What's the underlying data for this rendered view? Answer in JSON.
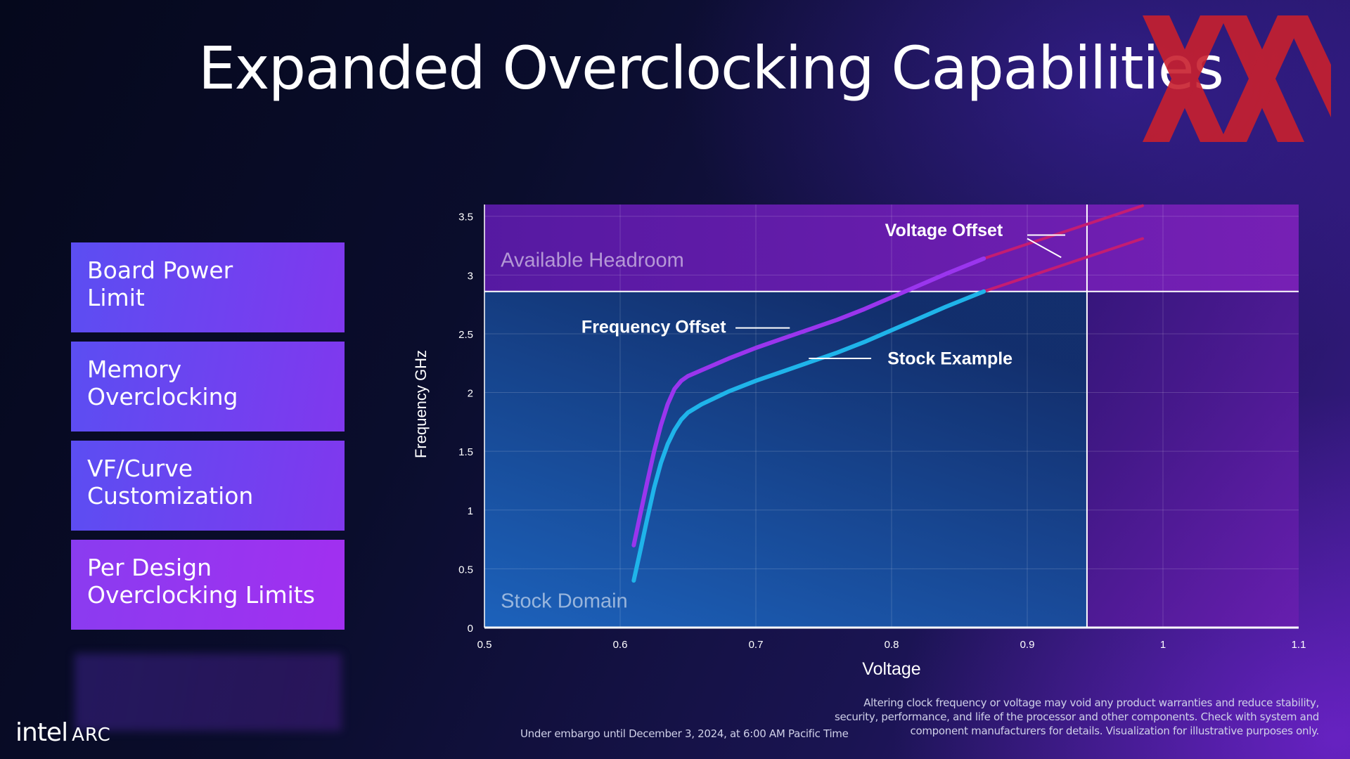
{
  "slide": {
    "title": "Expanded Overclocking Capabilities",
    "features": [
      [
        "Board Power",
        "Limit"
      ],
      [
        "Memory",
        "Overclocking"
      ],
      [
        "VF/Curve",
        "Customization"
      ],
      [
        "Per Design",
        "Overclocking Limits"
      ]
    ],
    "brand": {
      "intel": "intel",
      "arc": "ARC"
    },
    "embargo": "Under embargo until December 3, 2024, at 6:00 AM Pacific Time",
    "disclaimer": "Altering clock frequency or voltage may void any product warranties and reduce stability, security, performance, and life of the processor and other components.  Check with system and component manufacturers for details. Visualization for illustrative purposes only.",
    "colors": {
      "feature_card_start": "#5b4ef2",
      "feature_card_end": "#a22ff0",
      "logo_red": "#c8202e"
    }
  },
  "chart_data": {
    "type": "line",
    "title": "",
    "xlabel": "Voltage",
    "ylabel": "Frequency GHz",
    "xlim": [
      0.5,
      1.1
    ],
    "ylim": [
      0,
      3.6
    ],
    "xticks": [
      0.5,
      0.6,
      0.7,
      0.8,
      0.9,
      1,
      1.1
    ],
    "xtick_labels": [
      "0.5",
      "0.6",
      "0.7",
      "0.8",
      "0.9",
      "1",
      "1.1"
    ],
    "yticks": [
      0,
      0.5,
      1,
      1.5,
      2,
      2.5,
      3,
      3.5
    ],
    "ytick_labels": [
      "0",
      "0.5",
      "1",
      "1.5",
      "2",
      "2.5",
      "3",
      "3.5"
    ],
    "grid": true,
    "regions": [
      {
        "label": "Stock Domain",
        "x_range": [
          0.5,
          0.944
        ],
        "y_range": [
          0,
          2.86
        ],
        "color": "#1b5fb5"
      },
      {
        "label": "Available Headroom",
        "x_range": [
          0.5,
          1.1
        ],
        "y_range": [
          2.86,
          3.6
        ],
        "color": "#6a1fb4"
      }
    ],
    "limits": {
      "voltage": 0.944,
      "frequency": 2.86
    },
    "series": [
      {
        "name": "Stock Example",
        "color": "#1fb4ea",
        "x": [
          0.61,
          0.615,
          0.62,
          0.625,
          0.63,
          0.635,
          0.64,
          0.645,
          0.65,
          0.66,
          0.68,
          0.7,
          0.72,
          0.74,
          0.76,
          0.78,
          0.8,
          0.82,
          0.84,
          0.868
        ],
        "y": [
          0.4,
          0.66,
          0.93,
          1.19,
          1.4,
          1.56,
          1.68,
          1.77,
          1.83,
          1.9,
          2.01,
          2.1,
          2.18,
          2.26,
          2.34,
          2.43,
          2.53,
          2.63,
          2.73,
          2.86
        ]
      },
      {
        "name": "Frequency Offset",
        "color": "#9a35ee",
        "x": [
          0.61,
          0.615,
          0.62,
          0.625,
          0.63,
          0.635,
          0.64,
          0.645,
          0.65,
          0.66,
          0.68,
          0.7,
          0.72,
          0.74,
          0.76,
          0.78,
          0.8,
          0.82,
          0.84,
          0.868
        ],
        "y": [
          0.7,
          0.97,
          1.24,
          1.5,
          1.72,
          1.9,
          2.03,
          2.1,
          2.14,
          2.19,
          2.29,
          2.38,
          2.46,
          2.54,
          2.62,
          2.71,
          2.81,
          2.91,
          3.01,
          3.14
        ]
      },
      {
        "name": "Voltage Offset",
        "color": "#c41d72",
        "segments": [
          {
            "x": [
              0.868,
              0.985
            ],
            "y": [
              2.86,
              3.31
            ]
          },
          {
            "x": [
              0.868,
              0.985
            ],
            "y": [
              3.14,
              3.59
            ]
          }
        ]
      }
    ],
    "annotations": [
      {
        "text": "Available Headroom",
        "x": 0.512,
        "y": 3.07,
        "kind": "region"
      },
      {
        "text": "Stock Domain",
        "x": 0.512,
        "y": 0.17,
        "kind": "region"
      },
      {
        "text": "Voltage Offset",
        "x": 0.882,
        "y": 3.33,
        "kind": "callout",
        "leaders": [
          [
            0.9,
            3.34,
            0.928,
            3.34
          ],
          [
            0.9,
            3.31,
            0.925,
            3.15
          ]
        ]
      },
      {
        "text": "Frequency Offset",
        "x": 0.678,
        "y": 2.51,
        "kind": "callout",
        "leaders": [
          [
            0.685,
            2.55,
            0.725,
            2.55
          ]
        ]
      },
      {
        "text": "Stock Example",
        "x": 0.797,
        "y": 2.24,
        "kind": "callout",
        "leaders": [
          [
            0.739,
            2.29,
            0.785,
            2.29
          ]
        ]
      }
    ]
  }
}
